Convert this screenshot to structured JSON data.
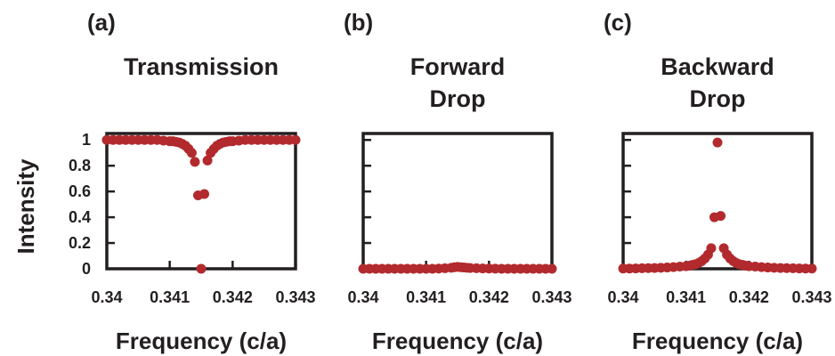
{
  "figure": {
    "ylabel": "Intensity",
    "marker_color": "#b22a2e",
    "axis_color": "#231f20"
  },
  "chart_data": [
    {
      "type": "scatter",
      "panel_label": "(a)",
      "title_lines": [
        "Transmission"
      ],
      "xlabel": "Frequency (c/a)",
      "xlim": [
        0.34,
        0.343
      ],
      "ylim": [
        0,
        1.05
      ],
      "xticks": [
        "0.34",
        "0.341",
        "0.342",
        "0.343"
      ],
      "yticks": [
        "0",
        "0.2",
        "0.4",
        "0.6",
        "0.8",
        "1"
      ],
      "series": [
        {
          "x": [
            0.34,
            0.3401,
            0.3402,
            0.3403,
            0.3404,
            0.3405,
            0.3406,
            0.3407,
            0.3408,
            0.3409,
            0.341,
            0.34105,
            0.3411,
            0.34115,
            0.3412,
            0.34125,
            0.3413,
            0.34135,
            0.3414,
            0.34145,
            0.34155,
            0.3416,
            0.34165,
            0.3417,
            0.34175,
            0.3418,
            0.34185,
            0.3419,
            0.34195,
            0.342,
            0.3421,
            0.3422,
            0.3423,
            0.3424,
            0.3425,
            0.3426,
            0.3427,
            0.3428,
            0.3429,
            0.343
          ],
          "y": [
            1,
            1,
            1,
            1,
            1,
            1,
            1,
            1,
            1,
            0.995,
            0.99,
            0.99,
            0.985,
            0.98,
            0.97,
            0.955,
            0.93,
            0.9,
            0.83,
            0.57,
            0.58,
            0.84,
            0.9,
            0.93,
            0.955,
            0.97,
            0.98,
            0.985,
            0.99,
            0.99,
            0.995,
            1,
            1,
            1,
            1,
            1,
            1,
            1,
            1,
            1
          ]
        },
        {
          "x": [
            0.3415
          ],
          "y": [
            0
          ]
        }
      ]
    },
    {
      "type": "scatter",
      "panel_label": "(b)",
      "title_lines": [
        "Forward",
        "Drop"
      ],
      "xlabel": "Frequency (c/a)",
      "xlim": [
        0.34,
        0.343
      ],
      "ylim": [
        0,
        1.05
      ],
      "xticks": [
        "0.34",
        "0.341",
        "0.342",
        "0.343"
      ],
      "yticks": [],
      "series": [
        {
          "x": [
            0.34,
            0.3401,
            0.3402,
            0.3403,
            0.3404,
            0.3405,
            0.3406,
            0.3407,
            0.3408,
            0.3409,
            0.341,
            0.3411,
            0.3412,
            0.3413,
            0.3414,
            0.34145,
            0.3415,
            0.34155,
            0.3416,
            0.34165,
            0.3417,
            0.3418,
            0.3419,
            0.342,
            0.3421,
            0.3422,
            0.3423,
            0.3424,
            0.3425,
            0.3426,
            0.3427,
            0.3428,
            0.3429,
            0.343
          ],
          "y": [
            0,
            0,
            0,
            0,
            0,
            0,
            0,
            0,
            0,
            0,
            0,
            0,
            0.002,
            0.004,
            0.008,
            0.012,
            0.015,
            0.012,
            0.01,
            0.008,
            0.006,
            0.004,
            0.003,
            0.002,
            0.001,
            0,
            0,
            0,
            0,
            0,
            0,
            0,
            0,
            0
          ]
        }
      ]
    },
    {
      "type": "scatter",
      "panel_label": "(c)",
      "title_lines": [
        "Backward",
        "Drop"
      ],
      "xlabel": "Frequency (c/a)",
      "xlim": [
        0.34,
        0.343
      ],
      "ylim": [
        0,
        1.05
      ],
      "xticks": [
        "0.34",
        "0.341",
        "0.342",
        "0.343"
      ],
      "yticks": [],
      "series": [
        {
          "x": [
            0.34,
            0.3401,
            0.3402,
            0.3403,
            0.3404,
            0.3405,
            0.3406,
            0.3407,
            0.3408,
            0.3409,
            0.341,
            0.34105,
            0.3411,
            0.34115,
            0.3412,
            0.34125,
            0.3413,
            0.34135,
            0.3414,
            0.34145,
            0.3415,
            0.34155,
            0.3416,
            0.34165,
            0.3417,
            0.34175,
            0.3418,
            0.34185,
            0.3419,
            0.34195,
            0.342,
            0.3421,
            0.3422,
            0.3423,
            0.3424,
            0.3425,
            0.3426,
            0.3427,
            0.3428,
            0.3429,
            0.343
          ],
          "y": [
            0.002,
            0.002,
            0.003,
            0.004,
            0.005,
            0.006,
            0.008,
            0.01,
            0.013,
            0.017,
            0.02,
            0.024,
            0.03,
            0.035,
            0.045,
            0.06,
            0.08,
            0.11,
            0.16,
            0.4,
            0.98,
            0.41,
            0.16,
            0.11,
            0.08,
            0.06,
            0.045,
            0.035,
            0.03,
            0.024,
            0.02,
            0.017,
            0.013,
            0.01,
            0.008,
            0.006,
            0.005,
            0.004,
            0.003,
            0.002,
            0.002
          ]
        }
      ]
    }
  ]
}
